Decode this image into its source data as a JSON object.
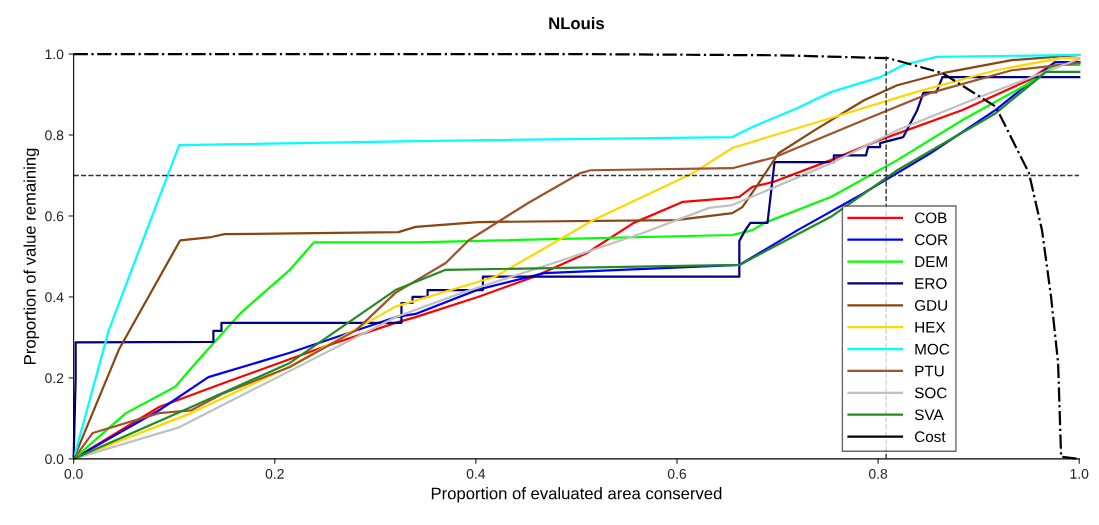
{
  "chart_data": {
    "type": "line",
    "title": "NLouis",
    "xlabel": "Proportion of evaluated area conserved",
    "ylabel": "Proportion of value remaining",
    "xlim": [
      0,
      1
    ],
    "ylim": [
      0,
      1
    ],
    "xticks": [
      {
        "value": 0,
        "label": "0.0"
      },
      0.2,
      0.4,
      0.6,
      0.8,
      {
        "value": 1,
        "label": "1.0"
      }
    ],
    "yticks": [
      {
        "value": 0,
        "label": "0.0"
      },
      0.2,
      0.4,
      0.6,
      0.8,
      {
        "value": 1,
        "label": "1.0"
      }
    ],
    "grid": false,
    "legend": "bottom right",
    "marker": "none",
    "line_style": "solid",
    "ref_lines": [
      {
        "axis": "y",
        "value": 0.7,
        "color": "#333333",
        "line_style": "dashed"
      },
      {
        "axis": "x",
        "value": 0.808,
        "color": "#333333",
        "line_style": "dashed"
      }
    ],
    "series": [
      {
        "name": "COB",
        "color": "#ff0000",
        "x": [
          0,
          0.085,
          0.15,
          0.249,
          0.32,
          0.34,
          0.402,
          0.458,
          0.51,
          0.557,
          0.606,
          0.655,
          0.662,
          0.675,
          0.697,
          0.753,
          0.802,
          0.884,
          0.95,
          0.976,
          1
        ],
        "values": [
          0,
          0.128,
          0.188,
          0.277,
          0.336,
          0.35,
          0.4,
          0.45,
          0.508,
          0.583,
          0.635,
          0.645,
          0.647,
          0.672,
          0.685,
          0.738,
          0.788,
          0.862,
          0.936,
          0.98,
          0.98
        ]
      },
      {
        "name": "COR",
        "color": "#0000ff",
        "x": [
          0,
          0.085,
          0.134,
          0.215,
          0.32,
          0.34,
          0.402,
          0.468,
          0.662,
          0.72,
          0.786,
          0.852,
          0.917,
          0.976,
          1
        ],
        "values": [
          0,
          0.12,
          0.202,
          0.262,
          0.35,
          0.358,
          0.418,
          0.459,
          0.479,
          0.565,
          0.657,
          0.755,
          0.862,
          0.98,
          0.98
        ]
      },
      {
        "name": "DEM",
        "color": "#00ff00",
        "x": [
          0,
          0.052,
          0.101,
          0.124,
          0.166,
          0.215,
          0.239,
          0.34,
          0.655,
          0.675,
          0.687,
          0.753,
          0.819,
          0.884,
          0.95,
          0.976,
          1
        ],
        "values": [
          0,
          0.113,
          0.178,
          0.244,
          0.36,
          0.467,
          0.535,
          0.535,
          0.553,
          0.565,
          0.583,
          0.647,
          0.738,
          0.837,
          0.928,
          0.973,
          0.973
        ]
      },
      {
        "name": "ERO",
        "color": "#000080",
        "x": [
          0,
          0.002,
          0.002,
          0.139,
          0.139,
          0.147,
          0.147,
          0.326,
          0.326,
          0.337,
          0.337,
          0.352,
          0.352,
          0.407,
          0.407,
          0.662,
          0.662,
          0.668,
          0.673,
          0.69,
          0.697,
          0.756,
          0.756,
          0.788,
          0.79,
          0.802,
          0.802,
          0.825,
          0.839,
          0.845,
          0.858,
          0.864,
          1
        ],
        "values": [
          0,
          0.2,
          0.288,
          0.289,
          0.316,
          0.316,
          0.336,
          0.336,
          0.385,
          0.385,
          0.4,
          0.4,
          0.417,
          0.417,
          0.45,
          0.45,
          0.538,
          0.565,
          0.583,
          0.583,
          0.733,
          0.733,
          0.75,
          0.75,
          0.77,
          0.77,
          0.78,
          0.795,
          0.862,
          0.904,
          0.906,
          0.943,
          0.943
        ]
      },
      {
        "name": "GDU",
        "color": "#8b4513",
        "x": [
          0,
          0.045,
          0.106,
          0.137,
          0.15,
          0.323,
          0.34,
          0.402,
          0.599,
          0.655,
          0.665,
          0.681,
          0.701,
          0.737,
          0.786,
          0.819,
          0.868,
          0.933,
          1
        ],
        "values": [
          0,
          0.27,
          0.54,
          0.548,
          0.555,
          0.56,
          0.573,
          0.585,
          0.59,
          0.607,
          0.622,
          0.68,
          0.755,
          0.812,
          0.886,
          0.923,
          0.955,
          0.985,
          0.998
        ]
      },
      {
        "name": "HEX",
        "color": "#ffd700",
        "x": [
          0,
          0.117,
          0.215,
          0.32,
          0.419,
          0.517,
          0.616,
          0.655,
          0.753,
          0.835,
          0.917,
          0.982,
          1
        ],
        "values": [
          0,
          0.113,
          0.228,
          0.376,
          0.45,
          0.59,
          0.706,
          0.768,
          0.842,
          0.904,
          0.96,
          0.99,
          0.99
        ]
      },
      {
        "name": "MOC",
        "color": "#00ffff",
        "x": [
          0,
          0.035,
          0.075,
          0.105,
          0.34,
          0.655,
          0.675,
          0.72,
          0.753,
          0.802,
          0.825,
          0.858,
          1
        ],
        "values": [
          0,
          0.318,
          0.58,
          0.775,
          0.785,
          0.795,
          0.82,
          0.867,
          0.906,
          0.943,
          0.973,
          0.993,
          0.998
        ]
      },
      {
        "name": "PTU",
        "color": "#a0522d",
        "x": [
          0,
          0.019,
          0.085,
          0.117,
          0.15,
          0.215,
          0.281,
          0.32,
          0.37,
          0.393,
          0.452,
          0.504,
          0.514,
          0.655,
          0.697,
          0.786,
          0.852,
          0.933,
          1
        ],
        "values": [
          0,
          0.064,
          0.113,
          0.12,
          0.163,
          0.227,
          0.318,
          0.41,
          0.484,
          0.54,
          0.632,
          0.706,
          0.713,
          0.718,
          0.745,
          0.837,
          0.904,
          0.96,
          0.978
        ]
      },
      {
        "name": "SOC",
        "color": "#c0c0c0",
        "x": [
          0,
          0.104,
          0.32,
          0.386,
          0.485,
          0.566,
          0.632,
          0.655,
          0.753,
          0.819,
          0.901,
          1
        ],
        "values": [
          0,
          0.077,
          0.35,
          0.41,
          0.49,
          0.558,
          0.62,
          0.627,
          0.73,
          0.812,
          0.894,
          0.988
        ]
      },
      {
        "name": "SVA",
        "color": "#228b22",
        "x": [
          0,
          0.117,
          0.215,
          0.32,
          0.37,
          0.662,
          0.753,
          0.819,
          0.917,
          0.967,
          1
        ],
        "values": [
          0,
          0.128,
          0.237,
          0.417,
          0.467,
          0.479,
          0.598,
          0.713,
          0.854,
          0.956,
          0.956
        ]
      },
      {
        "name": "Cost",
        "color": "#000000",
        "line_style": "dashdot",
        "x": [
          0,
          0.5,
          0.7,
          0.81,
          0.864,
          0.917,
          0.95,
          0.963,
          0.972,
          0.979,
          0.982,
          1
        ],
        "values": [
          1,
          1,
          0.997,
          0.99,
          0.953,
          0.87,
          0.706,
          0.565,
          0.4,
          0.237,
          0.005,
          0
        ]
      }
    ]
  }
}
